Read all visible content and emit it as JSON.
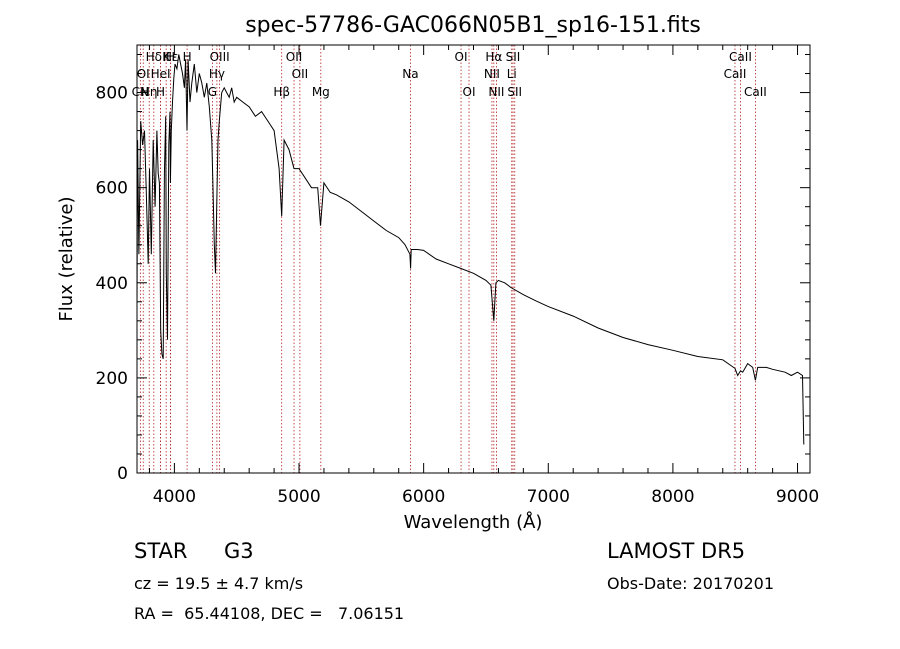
{
  "chart_data": {
    "type": "line",
    "title": "spec-57786-GAC066N05B1_sp16-151.fits",
    "xlabel": "Wavelength (Å)",
    "ylabel": "Flux (relative)",
    "xlim": [
      3700,
      9100
    ],
    "ylim": [
      0,
      900
    ],
    "xticks": [
      4000,
      5000,
      6000,
      7000,
      8000,
      9000
    ],
    "yticks": [
      0,
      200,
      400,
      600,
      800
    ],
    "grid": false,
    "series": [
      {
        "x": [
          3700,
          3705,
          3715,
          3730,
          3745,
          3760,
          3775,
          3790,
          3800,
          3815,
          3830,
          3845,
          3860,
          3870,
          3880,
          3890,
          3900,
          3910,
          3920,
          3930,
          3935,
          3945,
          3955,
          3965,
          3968,
          3975,
          3985,
          3995,
          4005,
          4020,
          4035,
          4050,
          4065,
          4080,
          4090,
          4101,
          4110,
          4125,
          4140,
          4160,
          4180,
          4200,
          4220,
          4240,
          4260,
          4280,
          4300,
          4310,
          4320,
          4330,
          4340,
          4350,
          4360,
          4380,
          4400,
          4420,
          4440,
          4460,
          4480,
          4500,
          4550,
          4600,
          4650,
          4700,
          4750,
          4800,
          4840,
          4861,
          4880,
          4920,
          4960,
          5000,
          5050,
          5100,
          5150,
          5172,
          5200,
          5250,
          5300,
          5400,
          5500,
          5600,
          5700,
          5800,
          5850,
          5890,
          5895,
          5900,
          5950,
          6000,
          6100,
          6200,
          6300,
          6400,
          6500,
          6540,
          6563,
          6580,
          6600,
          6650,
          6700,
          6800,
          6900,
          7000,
          7200,
          7400,
          7600,
          7800,
          8000,
          8200,
          8400,
          8498,
          8520,
          8542,
          8560,
          8600,
          8640,
          8662,
          8680,
          8750,
          8800,
          8900,
          8950,
          9000,
          9040,
          9050
        ],
        "y": [
          350,
          700,
          460,
          740,
          690,
          720,
          590,
          440,
          640,
          460,
          700,
          560,
          720,
          630,
          610,
          300,
          250,
          240,
          630,
          750,
          420,
          280,
          690,
          760,
          610,
          720,
          780,
          830,
          860,
          850,
          880,
          860,
          840,
          810,
          870,
          720,
          870,
          780,
          820,
          860,
          800,
          840,
          820,
          790,
          820,
          770,
          700,
          600,
          480,
          420,
          570,
          700,
          740,
          800,
          810,
          800,
          790,
          810,
          780,
          790,
          780,
          770,
          750,
          760,
          740,
          720,
          640,
          540,
          700,
          680,
          640,
          640,
          620,
          600,
          600,
          520,
          610,
          590,
          585,
          570,
          550,
          530,
          510,
          495,
          480,
          460,
          430,
          470,
          470,
          468,
          450,
          440,
          430,
          420,
          405,
          395,
          320,
          400,
          405,
          400,
          390,
          375,
          362,
          350,
          330,
          305,
          285,
          270,
          258,
          245,
          238,
          220,
          205,
          215,
          212,
          230,
          222,
          195,
          222,
          222,
          218,
          212,
          205,
          212,
          205,
          60
        ]
      }
    ],
    "line_markers": [
      {
        "label": "Hδ",
        "wavelength": 3835,
        "row": 1
      },
      {
        "label": "K",
        "wavelength": 3934,
        "row": 1
      },
      {
        "label": "H",
        "wavelength": 3969,
        "row": 1
      },
      {
        "label": "Hε",
        "wavelength": 3970,
        "row": 1
      },
      {
        "label": "OI",
        "wavelength": 3750,
        "row": 2
      },
      {
        "label": "HeI",
        "wavelength": 3889,
        "row": 2
      },
      {
        "label": "CN",
        "wavelength": 3727,
        "row": 3
      },
      {
        "label": "Hη",
        "wavelength": 3798,
        "row": 3
      },
      {
        "label": "H",
        "wavelength": 3889,
        "row": 3
      },
      {
        "label": "H",
        "wavelength": 4102,
        "row": 1
      },
      {
        "label": "OIII",
        "wavelength": 4363,
        "row": 1
      },
      {
        "label": "Hγ",
        "wavelength": 4341,
        "row": 2
      },
      {
        "label": "G",
        "wavelength": 4305,
        "row": 3
      },
      {
        "label": "OII",
        "wavelength": 4960,
        "row": 1
      },
      {
        "label": "OII",
        "wavelength": 5007,
        "row": 2
      },
      {
        "label": "Hβ",
        "wavelength": 4861,
        "row": 3
      },
      {
        "label": "Mg",
        "wavelength": 5175,
        "row": 3
      },
      {
        "label": "Na",
        "wavelength": 5894,
        "row": 2
      },
      {
        "label": "OI",
        "wavelength": 6300,
        "row": 1
      },
      {
        "label": "OI",
        "wavelength": 6364,
        "row": 3
      },
      {
        "label": "Hα",
        "wavelength": 6563,
        "row": 1
      },
      {
        "label": "SII",
        "wavelength": 6717,
        "row": 1
      },
      {
        "label": "NII",
        "wavelength": 6548,
        "row": 2
      },
      {
        "label": "Li",
        "wavelength": 6707,
        "row": 2
      },
      {
        "label": "NII",
        "wavelength": 6584,
        "row": 3
      },
      {
        "label": "SII",
        "wavelength": 6731,
        "row": 3
      },
      {
        "label": "CaII",
        "wavelength": 8542,
        "row": 1
      },
      {
        "label": "CaII",
        "wavelength": 8498,
        "row": 2
      },
      {
        "label": "CaII",
        "wavelength": 8662,
        "row": 3
      }
    ]
  },
  "info": {
    "class": "STAR",
    "subclass": "G3",
    "survey": "LAMOST DR5",
    "cz": "cz = 19.5 ± 4.7 km/s",
    "obs_date": "Obs-Date: 20170201",
    "radec": "RA =  65.44108, DEC =   7.06151"
  },
  "colors": {
    "spectrum": "#000000",
    "marker": "#b22222"
  }
}
